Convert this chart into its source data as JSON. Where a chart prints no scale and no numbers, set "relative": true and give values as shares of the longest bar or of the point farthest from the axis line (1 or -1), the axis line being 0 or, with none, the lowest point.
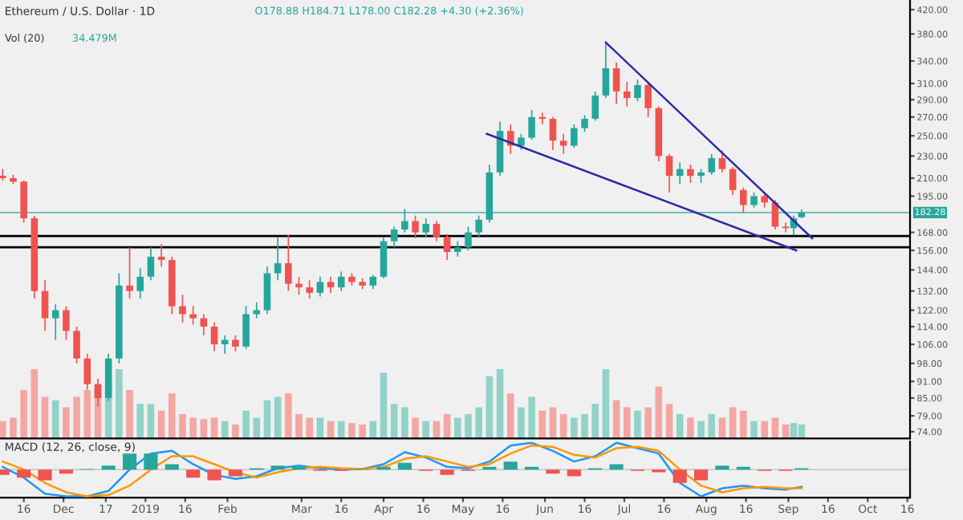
{
  "chart_data": [
    {
      "type": "candlestick",
      "title": "Ethereum / U.S. Dollar · 1D",
      "subtitle": "O178.88 H184.71 L178.00 C182.28 +4.30 (+2.36%)",
      "x": [
        "2018-11-08",
        "2018-11-12",
        "2018-11-16",
        "2018-11-20",
        "2018-11-24",
        "2018-11-28",
        "2018-12-02",
        "2018-12-06",
        "2018-12-10",
        "2018-12-14",
        "2018-12-18",
        "2018-12-22",
        "2018-12-26",
        "2018-12-30",
        "2019-01-03",
        "2019-01-07",
        "2019-01-11",
        "2019-01-15",
        "2019-01-19",
        "2019-01-23",
        "2019-01-27",
        "2019-01-31",
        "2019-02-04",
        "2019-02-08",
        "2019-02-12",
        "2019-02-16",
        "2019-02-20",
        "2019-02-24",
        "2019-02-28",
        "2019-03-04",
        "2019-03-08",
        "2019-03-12",
        "2019-03-16",
        "2019-03-20",
        "2019-03-24",
        "2019-03-28",
        "2019-04-01",
        "2019-04-05",
        "2019-04-09",
        "2019-04-13",
        "2019-04-17",
        "2019-04-21",
        "2019-04-25",
        "2019-04-29",
        "2019-05-03",
        "2019-05-07",
        "2019-05-11",
        "2019-05-15",
        "2019-05-19",
        "2019-05-23",
        "2019-05-27",
        "2019-05-31",
        "2019-06-04",
        "2019-06-08",
        "2019-06-12",
        "2019-06-16",
        "2019-06-20",
        "2019-06-24",
        "2019-06-28",
        "2019-07-02",
        "2019-07-06",
        "2019-07-10",
        "2019-07-14",
        "2019-07-18",
        "2019-07-22",
        "2019-07-26",
        "2019-07-30",
        "2019-08-03",
        "2019-08-07",
        "2019-08-11",
        "2019-08-15",
        "2019-08-19",
        "2019-08-23",
        "2019-08-27",
        "2019-08-31",
        "2019-09-03",
        "2019-09-06"
      ],
      "ohlc": [
        [
          212,
          218,
          208,
          210
        ],
        [
          210,
          213,
          205,
          207
        ],
        [
          207,
          208,
          175,
          178
        ],
        [
          178,
          180,
          128,
          132
        ],
        [
          132,
          138,
          112,
          118
        ],
        [
          118,
          125,
          108,
          122
        ],
        [
          122,
          124,
          108,
          112
        ],
        [
          112,
          114,
          98,
          100
        ],
        [
          100,
          102,
          88,
          90
        ],
        [
          90,
          92,
          82,
          85
        ],
        [
          85,
          102,
          84,
          100
        ],
        [
          100,
          142,
          98,
          135
        ],
        [
          135,
          158,
          128,
          132
        ],
        [
          132,
          145,
          128,
          140
        ],
        [
          140,
          158,
          138,
          152
        ],
        [
          152,
          160,
          146,
          150
        ],
        [
          150,
          152,
          120,
          124
        ],
        [
          124,
          130,
          116,
          120
        ],
        [
          120,
          124,
          115,
          118
        ],
        [
          118,
          120,
          110,
          114
        ],
        [
          114,
          116,
          103,
          106
        ],
        [
          106,
          110,
          102,
          108
        ],
        [
          108,
          110,
          103,
          105
        ],
        [
          105,
          124,
          104,
          120
        ],
        [
          120,
          126,
          118,
          122
        ],
        [
          122,
          146,
          120,
          142
        ],
        [
          142,
          165,
          138,
          148
        ],
        [
          148,
          166,
          132,
          136
        ],
        [
          136,
          140,
          130,
          134
        ],
        [
          134,
          138,
          128,
          131
        ],
        [
          131,
          140,
          129,
          137
        ],
        [
          137,
          140,
          131,
          134
        ],
        [
          134,
          143,
          132,
          140
        ],
        [
          140,
          142,
          135,
          137
        ],
        [
          137,
          139,
          133,
          135
        ],
        [
          135,
          141,
          133,
          140
        ],
        [
          140,
          165,
          139,
          162
        ],
        [
          162,
          172,
          158,
          170
        ],
        [
          170,
          185,
          168,
          176
        ],
        [
          176,
          180,
          164,
          168
        ],
        [
          168,
          178,
          165,
          174
        ],
        [
          174,
          176,
          162,
          165
        ],
        [
          165,
          167,
          150,
          155
        ],
        [
          155,
          162,
          152,
          158
        ],
        [
          158,
          172,
          156,
          168
        ],
        [
          168,
          180,
          165,
          177
        ],
        [
          177,
          222,
          175,
          215
        ],
        [
          215,
          265,
          212,
          255
        ],
        [
          255,
          262,
          232,
          240
        ],
        [
          240,
          252,
          236,
          248
        ],
        [
          248,
          278,
          246,
          270
        ],
        [
          270,
          275,
          262,
          268
        ],
        [
          268,
          270,
          236,
          245
        ],
        [
          245,
          252,
          232,
          240
        ],
        [
          240,
          262,
          238,
          258
        ],
        [
          258,
          272,
          254,
          268
        ],
        [
          268,
          300,
          266,
          295
        ],
        [
          295,
          367,
          292,
          330
        ],
        [
          330,
          338,
          285,
          300
        ],
        [
          300,
          312,
          282,
          292
        ],
        [
          292,
          315,
          288,
          308
        ],
        [
          308,
          312,
          270,
          280
        ],
        [
          280,
          282,
          225,
          230
        ],
        [
          230,
          232,
          198,
          212
        ],
        [
          212,
          224,
          205,
          218
        ],
        [
          218,
          222,
          206,
          212
        ],
        [
          212,
          218,
          206,
          215
        ],
        [
          215,
          232,
          213,
          228
        ],
        [
          228,
          235,
          215,
          218
        ],
        [
          218,
          220,
          196,
          200
        ],
        [
          200,
          202,
          182,
          188
        ],
        [
          188,
          198,
          186,
          195
        ],
        [
          195,
          198,
          186,
          190
        ],
        [
          190,
          192,
          170,
          172
        ],
        [
          172,
          175,
          168,
          171
        ],
        [
          171,
          180,
          166,
          178
        ],
        [
          178.88,
          184.71,
          178.0,
          182.28
        ]
      ],
      "colors": [
        "#ef5350",
        "#ef5350",
        "#ef5350",
        "#ef5350",
        "#ef5350",
        "#26a69a",
        "#ef5350",
        "#ef5350",
        "#ef5350",
        "#ef5350",
        "#26a69a",
        "#26a69a",
        "#ef5350",
        "#26a69a",
        "#26a69a",
        "#ef5350",
        "#ef5350",
        "#ef5350",
        "#ef5350",
        "#ef5350",
        "#ef5350",
        "#26a69a",
        "#ef5350",
        "#26a69a",
        "#26a69a",
        "#26a69a",
        "#26a69a",
        "#ef5350",
        "#ef5350",
        "#ef5350",
        "#26a69a",
        "#ef5350",
        "#26a69a",
        "#ef5350",
        "#ef5350",
        "#26a69a",
        "#26a69a",
        "#26a69a",
        "#26a69a",
        "#ef5350",
        "#26a69a",
        "#ef5350",
        "#ef5350",
        "#26a69a",
        "#26a69a",
        "#26a69a",
        "#26a69a",
        "#26a69a",
        "#ef5350",
        "#26a69a",
        "#26a69a",
        "#ef5350",
        "#ef5350",
        "#ef5350",
        "#26a69a",
        "#26a69a",
        "#26a69a",
        "#26a69a",
        "#ef5350",
        "#ef5350",
        "#26a69a",
        "#ef5350",
        "#ef5350",
        "#ef5350",
        "#26a69a",
        "#ef5350",
        "#26a69a",
        "#26a69a",
        "#ef5350",
        "#ef5350",
        "#ef5350",
        "#26a69a",
        "#ef5350",
        "#ef5350",
        "#ef5350",
        "#26a69a",
        "#26a69a"
      ],
      "series": [
        {
          "type": "line",
          "color": "#2b2ba6",
          "x": [
            "2019-06-24",
            "2019-09-10"
          ],
          "values": [
            367,
            164
          ]
        },
        {
          "type": "line",
          "color": "#2b2ba6",
          "x": [
            "2019-05-10",
            "2019-09-04"
          ],
          "values": [
            252,
            156
          ]
        }
      ],
      "ref_lines": [
        {
          "axis": "y",
          "value": 182.28,
          "label": "182.28",
          "color": "#26a69a"
        },
        {
          "axis": "y",
          "value": 165.5,
          "color": "#000000"
        },
        {
          "axis": "y",
          "value": 158,
          "color": "#000000"
        }
      ],
      "log": true,
      "xlim": [
        "2018-11-07",
        "2019-10-17"
      ],
      "ylim": [
        72,
        437
      ],
      "yticks": [
        {
          "value": 420,
          "label": "420.00"
        },
        {
          "value": 380,
          "label": "380.00"
        },
        {
          "value": 340,
          "label": "340.00"
        },
        {
          "value": 310,
          "label": "310.00"
        },
        {
          "value": 290,
          "label": "290.00"
        },
        {
          "value": 270,
          "label": "270.00"
        },
        {
          "value": 250,
          "label": "250.00"
        },
        {
          "value": 230,
          "label": "230.00"
        },
        {
          "value": 210,
          "label": "210.00"
        },
        {
          "value": 195,
          "label": "195.00"
        },
        {
          "value": 168,
          "label": "168.00"
        },
        {
          "value": 156,
          "label": "156.00"
        },
        {
          "value": 144,
          "label": "144.00"
        },
        {
          "value": 132,
          "label": "132.00"
        },
        {
          "value": 122,
          "label": "122.00"
        },
        {
          "value": 114,
          "label": "114.00"
        },
        {
          "value": 106,
          "label": "106.00"
        },
        {
          "value": 98,
          "label": "98.00"
        },
        {
          "value": 91,
          "label": "91.00"
        },
        {
          "value": 85,
          "label": "85.00"
        },
        {
          "value": 79,
          "label": "79.00"
        },
        {
          "value": 74,
          "label": "74.00"
        }
      ],
      "tick_labels": "y"
    },
    {
      "type": "bar",
      "relative": true,
      "annotations": [
        "Vol (20)",
        "34.479M"
      ],
      "xlim": [
        "2018-11-07",
        "2019-10-17"
      ],
      "tick_labels": false,
      "x": [
        "2018-11-08",
        "2018-11-12",
        "2018-11-16",
        "2018-11-20",
        "2018-11-24",
        "2018-11-28",
        "2018-12-02",
        "2018-12-06",
        "2018-12-10",
        "2018-12-14",
        "2018-12-18",
        "2018-12-22",
        "2018-12-26",
        "2018-12-30",
        "2019-01-03",
        "2019-01-07",
        "2019-01-11",
        "2019-01-15",
        "2019-01-19",
        "2019-01-23",
        "2019-01-27",
        "2019-01-31",
        "2019-02-04",
        "2019-02-08",
        "2019-02-12",
        "2019-02-16",
        "2019-02-20",
        "2019-02-24",
        "2019-02-28",
        "2019-03-04",
        "2019-03-08",
        "2019-03-12",
        "2019-03-16",
        "2019-03-20",
        "2019-03-24",
        "2019-03-28",
        "2019-04-01",
        "2019-04-05",
        "2019-04-09",
        "2019-04-13",
        "2019-04-17",
        "2019-04-21",
        "2019-04-25",
        "2019-04-29",
        "2019-05-03",
        "2019-05-07",
        "2019-05-11",
        "2019-05-15",
        "2019-05-19",
        "2019-05-23",
        "2019-05-27",
        "2019-05-31",
        "2019-06-04",
        "2019-06-08",
        "2019-06-12",
        "2019-06-16",
        "2019-06-20",
        "2019-06-24",
        "2019-06-28",
        "2019-07-02",
        "2019-07-06",
        "2019-07-10",
        "2019-07-14",
        "2019-07-18",
        "2019-07-22",
        "2019-07-26",
        "2019-07-30",
        "2019-08-03",
        "2019-08-07",
        "2019-08-11",
        "2019-08-15",
        "2019-08-19",
        "2019-08-23",
        "2019-08-27",
        "2019-08-31",
        "2019-09-03",
        "2019-09-06"
      ],
      "values": [
        0.25,
        0.3,
        0.7,
        1.0,
        0.6,
        0.55,
        0.45,
        0.6,
        0.7,
        0.75,
        0.8,
        1.0,
        0.7,
        0.5,
        0.5,
        0.4,
        0.65,
        0.35,
        0.3,
        0.28,
        0.3,
        0.25,
        0.2,
        0.4,
        0.3,
        0.55,
        0.6,
        0.65,
        0.35,
        0.3,
        0.3,
        0.25,
        0.25,
        0.22,
        0.2,
        0.25,
        0.95,
        0.5,
        0.45,
        0.3,
        0.25,
        0.25,
        0.35,
        0.3,
        0.35,
        0.45,
        0.9,
        1.0,
        0.65,
        0.45,
        0.6,
        0.4,
        0.45,
        0.35,
        0.3,
        0.35,
        0.5,
        1.0,
        0.55,
        0.45,
        0.4,
        0.45,
        0.75,
        0.5,
        0.35,
        0.3,
        0.25,
        0.35,
        0.3,
        0.45,
        0.4,
        0.25,
        0.25,
        0.3,
        0.2,
        0.22,
        0.2
      ],
      "colors": [
        "#f4a6a2",
        "#f4a6a2",
        "#f4a6a2",
        "#f4a6a2",
        "#f4a6a2",
        "#92d2c8",
        "#f4a6a2",
        "#f4a6a2",
        "#f4a6a2",
        "#f4a6a2",
        "#92d2c8",
        "#92d2c8",
        "#f4a6a2",
        "#92d2c8",
        "#92d2c8",
        "#f4a6a2",
        "#f4a6a2",
        "#f4a6a2",
        "#f4a6a2",
        "#f4a6a2",
        "#f4a6a2",
        "#92d2c8",
        "#f4a6a2",
        "#92d2c8",
        "#92d2c8",
        "#92d2c8",
        "#92d2c8",
        "#f4a6a2",
        "#f4a6a2",
        "#f4a6a2",
        "#92d2c8",
        "#f4a6a2",
        "#92d2c8",
        "#f4a6a2",
        "#f4a6a2",
        "#92d2c8",
        "#92d2c8",
        "#92d2c8",
        "#92d2c8",
        "#f4a6a2",
        "#92d2c8",
        "#f4a6a2",
        "#f4a6a2",
        "#92d2c8",
        "#92d2c8",
        "#92d2c8",
        "#92d2c8",
        "#92d2c8",
        "#f4a6a2",
        "#92d2c8",
        "#92d2c8",
        "#f4a6a2",
        "#f4a6a2",
        "#f4a6a2",
        "#92d2c8",
        "#92d2c8",
        "#92d2c8",
        "#92d2c8",
        "#f4a6a2",
        "#f4a6a2",
        "#92d2c8",
        "#f4a6a2",
        "#f4a6a2",
        "#f4a6a2",
        "#92d2c8",
        "#f4a6a2",
        "#92d2c8",
        "#92d2c8",
        "#f4a6a2",
        "#f4a6a2",
        "#f4a6a2",
        "#92d2c8",
        "#f4a6a2",
        "#f4a6a2",
        "#f4a6a2",
        "#92d2c8",
        "#92d2c8"
      ]
    },
    {
      "type": "line",
      "relative": true,
      "title": "MACD (12, 26, close, 9)",
      "xlim": [
        "2018-11-07",
        "2019-10-17"
      ],
      "tick_labels": "x",
      "xticks": [
        {
          "value": "2018-11-16",
          "label": "16"
        },
        {
          "value": "2018-12-01",
          "label": "Dec"
        },
        {
          "value": "2018-12-17",
          "label": "17"
        },
        {
          "value": "2019-01-01",
          "label": "2019"
        },
        {
          "value": "2019-01-16",
          "label": "16"
        },
        {
          "value": "2019-02-01",
          "label": "Feb"
        },
        {
          "value": "2019-03-01",
          "label": "Mar"
        },
        {
          "value": "2019-03-16",
          "label": "16"
        },
        {
          "value": "2019-04-01",
          "label": "Apr"
        },
        {
          "value": "2019-04-16",
          "label": "16"
        },
        {
          "value": "2019-05-01",
          "label": "May"
        },
        {
          "value": "2019-05-16",
          "label": "16"
        },
        {
          "value": "2019-06-01",
          "label": "Jun"
        },
        {
          "value": "2019-06-16",
          "label": "16"
        },
        {
          "value": "2019-07-01",
          "label": "Jul"
        },
        {
          "value": "2019-07-16",
          "label": "16"
        },
        {
          "value": "2019-08-01",
          "label": "Aug"
        },
        {
          "value": "2019-08-16",
          "label": "16"
        },
        {
          "value": "2019-09-01",
          "label": "Sep"
        },
        {
          "value": "2019-09-16",
          "label": "16"
        },
        {
          "value": "2019-10-01",
          "label": "Oct"
        },
        {
          "value": "2019-10-16",
          "label": "16"
        }
      ],
      "x": [
        "2018-11-08",
        "2018-11-16",
        "2018-11-24",
        "2018-12-02",
        "2018-12-10",
        "2018-12-18",
        "2018-12-26",
        "2019-01-03",
        "2019-01-11",
        "2019-01-19",
        "2019-01-27",
        "2019-02-04",
        "2019-02-12",
        "2019-02-20",
        "2019-02-28",
        "2019-03-08",
        "2019-03-16",
        "2019-03-24",
        "2019-04-01",
        "2019-04-09",
        "2019-04-17",
        "2019-04-25",
        "2019-05-03",
        "2019-05-11",
        "2019-05-19",
        "2019-05-27",
        "2019-06-04",
        "2019-06-12",
        "2019-06-20",
        "2019-06-28",
        "2019-07-06",
        "2019-07-14",
        "2019-07-22",
        "2019-07-30",
        "2019-08-07",
        "2019-08-15",
        "2019-08-23",
        "2019-08-31",
        "2019-09-06"
      ],
      "series": [
        {
          "type": "bar",
          "values": [
            -0.2,
            -0.3,
            -0.4,
            -0.15,
            0.02,
            0.15,
            0.6,
            0.6,
            0.2,
            -0.3,
            -0.4,
            -0.25,
            0.05,
            0.15,
            0.1,
            -0.05,
            -0.05,
            0.02,
            0.1,
            0.25,
            -0.05,
            -0.2,
            -0.05,
            0.1,
            0.3,
            0.1,
            -0.15,
            -0.25,
            0.05,
            0.2,
            -0.05,
            -0.1,
            -0.5,
            -0.4,
            0.15,
            0.1,
            -0.05,
            -0.05,
            0.05
          ],
          "colors": [
            "#ef5350",
            "#ef5350",
            "#ef5350",
            "#ef5350",
            "#26a69a",
            "#26a69a",
            "#26a69a",
            "#26a69a",
            "#26a69a",
            "#ef5350",
            "#ef5350",
            "#ef5350",
            "#26a69a",
            "#26a69a",
            "#26a69a",
            "#ef5350",
            "#ef5350",
            "#26a69a",
            "#26a69a",
            "#26a69a",
            "#ef5350",
            "#ef5350",
            "#ef5350",
            "#26a69a",
            "#26a69a",
            "#26a69a",
            "#ef5350",
            "#ef5350",
            "#26a69a",
            "#26a69a",
            "#ef5350",
            "#ef5350",
            "#ef5350",
            "#ef5350",
            "#26a69a",
            "#26a69a",
            "#ef5350",
            "#ef5350",
            "#26a69a"
          ]
        },
        {
          "type": "line",
          "color": "#2196f3",
          "values": [
            0.1,
            -0.3,
            -0.9,
            -1.0,
            -1.0,
            -0.8,
            0.0,
            0.6,
            0.7,
            0.2,
            -0.2,
            -0.35,
            -0.25,
            0.05,
            0.15,
            0.05,
            0.0,
            0.02,
            0.2,
            0.65,
            0.45,
            0.1,
            0.05,
            0.3,
            0.9,
            1.0,
            0.7,
            0.3,
            0.5,
            1.0,
            0.8,
            0.6,
            -0.5,
            -1.0,
            -0.7,
            -0.6,
            -0.7,
            -0.75,
            -0.65
          ]
        },
        {
          "type": "line",
          "color": "#ff9800",
          "values": [
            0.3,
            0.0,
            -0.5,
            -0.85,
            -1.0,
            -0.95,
            -0.6,
            0.0,
            0.5,
            0.5,
            0.2,
            -0.1,
            -0.3,
            -0.1,
            0.05,
            0.1,
            0.05,
            0.02,
            0.1,
            0.4,
            0.5,
            0.3,
            0.1,
            0.2,
            0.6,
            0.9,
            0.85,
            0.55,
            0.45,
            0.8,
            0.85,
            0.7,
            0.0,
            -0.6,
            -0.85,
            -0.7,
            -0.65,
            -0.7,
            -0.7
          ]
        }
      ]
    }
  ]
}
